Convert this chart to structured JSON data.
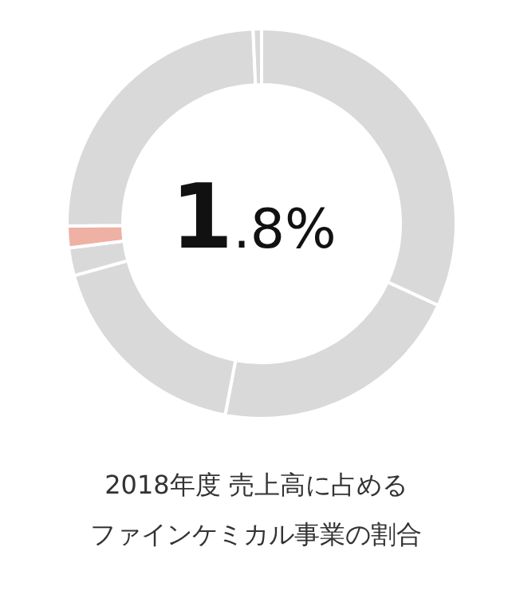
{
  "chart_data": {
    "type": "donut",
    "title": "2018年度 売上高に占める",
    "subtitle": "ファインケミカル事業の割合",
    "categories": [
      null,
      null,
      null,
      null,
      null,
      null,
      null
    ],
    "values": [
      31.9,
      21.1,
      17.7,
      2.3,
      1.8,
      24.5,
      0.7
    ],
    "colors": [
      "#d9d9d9",
      "#d9d9d9",
      "#d9d9d9",
      "#d9d9d9",
      "#eeb1a3",
      "#d9d9d9",
      "#d9d9d9"
    ],
    "annotations": [
      "1.8%"
    ],
    "legend": false
  }
}
